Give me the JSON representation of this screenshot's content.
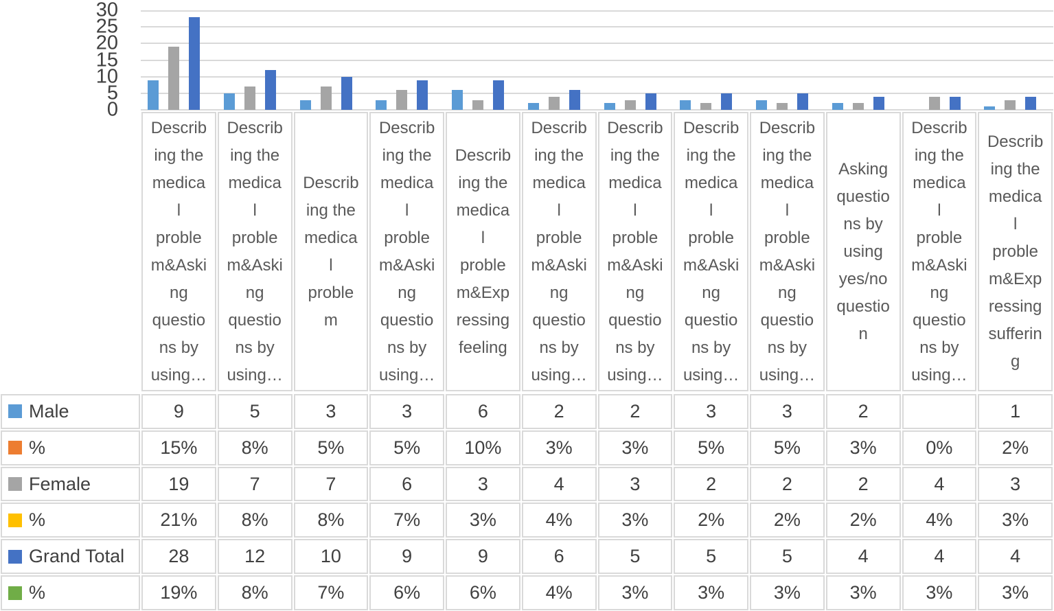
{
  "chart_data": {
    "type": "bar",
    "title": "",
    "xlabel": "",
    "ylabel": "",
    "ylim": [
      0,
      30
    ],
    "yticks": [
      30,
      25,
      20,
      15,
      10,
      5,
      0
    ],
    "grid": "horizontal",
    "gridline_color": "#d9d9d9",
    "legend_position": "data-table-left",
    "categories": [
      "Describing the medical problem&Asking questions by using…",
      "Describing the medical problem&Asking questions by using…",
      "Describing the medical problem",
      "Describing the medical problem&Asking questions by using…",
      "Describing the medical problem&Expressing feeling",
      "Describing the medical problem&Asking questions by using…",
      "Describing the medical problem&Asking questions by using…",
      "Describing the medical problem&Asking questions by using…",
      "Describing the medical problem&Asking questions by using…",
      "Asking questions by using yes/no question",
      "Describing the medical problem&Asking questions by using…",
      "Describing the medical problem&Expressing suffering"
    ],
    "tick_labels_wrapped": [
      "Describ\ning the\nmedica\nl\nproble\nm&Aski\nng\nquestio\nns by\nusing…",
      "Describ\ning the\nmedica\nl\nproble\nm&Aski\nng\nquestio\nns by\nusing…",
      "Describ\ning the\nmedica\nl\nproble\nm",
      "Describ\ning the\nmedica\nl\nproble\nm&Aski\nng\nquestio\nns by\nusing…",
      "Describ\ning the\nmedica\nl\nproble\nm&Exp\nressing\nfeeling",
      "Describ\ning the\nmedica\nl\nproble\nm&Aski\nng\nquestio\nns by\nusing…",
      "Describ\ning the\nmedica\nl\nproble\nm&Aski\nng\nquestio\nns by\nusing…",
      "Describ\ning the\nmedica\nl\nproble\nm&Aski\nng\nquestio\nns by\nusing…",
      "Describ\ning the\nmedica\nl\nproble\nm&Aski\nng\nquestio\nns by\nusing…",
      "Asking\nquestio\nns by\nusing\nyes/no\nquestio\nn",
      "Describ\ning the\nmedica\nl\nproble\nm&Aski\nng\nquestio\nns by\nusing…",
      "Describ\ning the\nmedica\nl\nproble\nm&Exp\nressing\nsufferin\ng"
    ],
    "series": [
      {
        "name": "Male",
        "key": "male",
        "color": "#5B9BD5",
        "values": [
          9,
          5,
          3,
          3,
          6,
          2,
          2,
          3,
          3,
          2,
          null,
          1
        ]
      },
      {
        "name": "%",
        "key": "male-pct",
        "color": "#ED7D31",
        "values": [
          0.15,
          0.08,
          0.05,
          0.05,
          0.1,
          0.03,
          0.03,
          0.05,
          0.05,
          0.03,
          0,
          0.02
        ]
      },
      {
        "name": "Female",
        "key": "female",
        "color": "#A5A5A5",
        "values": [
          19,
          7,
          7,
          6,
          3,
          4,
          3,
          2,
          2,
          2,
          4,
          3
        ]
      },
      {
        "name": "%",
        "key": "female-pct",
        "color": "#FFC000",
        "values": [
          0.21,
          0.08,
          0.08,
          0.07,
          0.03,
          0.04,
          0.03,
          0.02,
          0.02,
          0.02,
          0.04,
          0.03
        ]
      },
      {
        "name": "Grand Total",
        "key": "grand-total",
        "color": "#4472C4",
        "values": [
          28,
          12,
          10,
          9,
          9,
          6,
          5,
          5,
          5,
          4,
          4,
          4
        ]
      },
      {
        "name": "%",
        "key": "grand-total-pct",
        "color": "#70AD47",
        "values": [
          0.19,
          0.08,
          0.07,
          0.06,
          0.06,
          0.04,
          0.03,
          0.03,
          0.03,
          0.03,
          0.03,
          0.03
        ]
      }
    ]
  },
  "table": {
    "rows": [
      {
        "label": "Male",
        "swatch": "#5B9BD5",
        "cells": [
          "9",
          "5",
          "3",
          "3",
          "6",
          "2",
          "2",
          "3",
          "3",
          "2",
          "",
          "1"
        ]
      },
      {
        "label": "%",
        "swatch": "#ED7D31",
        "cells": [
          "15%",
          "8%",
          "5%",
          "5%",
          "10%",
          "3%",
          "3%",
          "5%",
          "5%",
          "3%",
          "0%",
          "2%"
        ]
      },
      {
        "label": "Female",
        "swatch": "#A5A5A5",
        "cells": [
          "19",
          "7",
          "7",
          "6",
          "3",
          "4",
          "3",
          "2",
          "2",
          "2",
          "4",
          "3"
        ]
      },
      {
        "label": "%",
        "swatch": "#FFC000",
        "cells": [
          "21%",
          "8%",
          "8%",
          "7%",
          "3%",
          "4%",
          "3%",
          "2%",
          "2%",
          "2%",
          "4%",
          "3%"
        ]
      },
      {
        "label": "Grand Total",
        "swatch": "#4472C4",
        "cells": [
          "28",
          "12",
          "10",
          "9",
          "9",
          "6",
          "5",
          "5",
          "5",
          "4",
          "4",
          "4"
        ]
      },
      {
        "label": "%",
        "swatch": "#70AD47",
        "cells": [
          "19%",
          "8%",
          "7%",
          "6%",
          "6%",
          "4%",
          "3%",
          "3%",
          "3%",
          "3%",
          "3%",
          "3%"
        ]
      }
    ]
  },
  "colors": {
    "gridline": "#d9d9d9",
    "cell_border": "#d9d9d9",
    "axis_text": "#404040",
    "category_text": "#595959",
    "background": "#ffffff"
  }
}
